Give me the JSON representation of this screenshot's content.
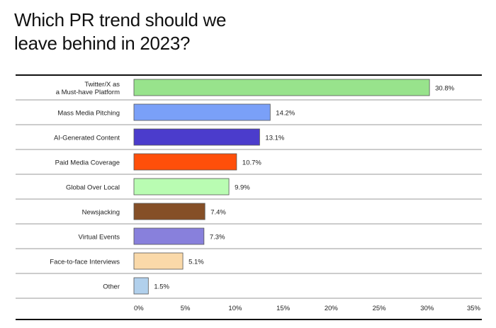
{
  "chart_data": {
    "type": "bar",
    "orientation": "horizontal",
    "title": "Which PR trend should we leave behind in 2023?",
    "title_lines": [
      "Which PR trend should we",
      "leave behind in 2023?"
    ],
    "categories": [
      [
        "Twitter/X as",
        "a Must-have Platform"
      ],
      [
        "Mass Media Pitching"
      ],
      [
        "AI-Generated Content"
      ],
      [
        "Paid Media Coverage"
      ],
      [
        "Global Over Local"
      ],
      [
        "Newsjacking"
      ],
      [
        "Virtual Events"
      ],
      [
        "Face-to-face Interviews"
      ],
      [
        "Other"
      ]
    ],
    "values": [
      30.8,
      14.2,
      13.1,
      10.7,
      9.9,
      7.4,
      7.3,
      5.1,
      1.5
    ],
    "value_labels": [
      "30.8%",
      "14.2%",
      "13.1%",
      "10.7%",
      "9.9%",
      "7.4%",
      "7.3%",
      "5.1%",
      "1.5%"
    ],
    "colors": [
      "#98e38c",
      "#7aa0f8",
      "#4b3ccc",
      "#ff4f0a",
      "#b9fcb2",
      "#854f27",
      "#8880dc",
      "#fad9a9",
      "#b1d0ec"
    ],
    "xlim": [
      0,
      35
    ],
    "xticks": [
      0,
      5,
      10,
      15,
      20,
      25,
      30,
      35
    ],
    "xtick_labels": [
      "0%",
      "5%",
      "10%",
      "15%",
      "20%",
      "25%",
      "30%",
      "35%"
    ],
    "xlabel": "",
    "ylabel": "",
    "grid": false
  }
}
